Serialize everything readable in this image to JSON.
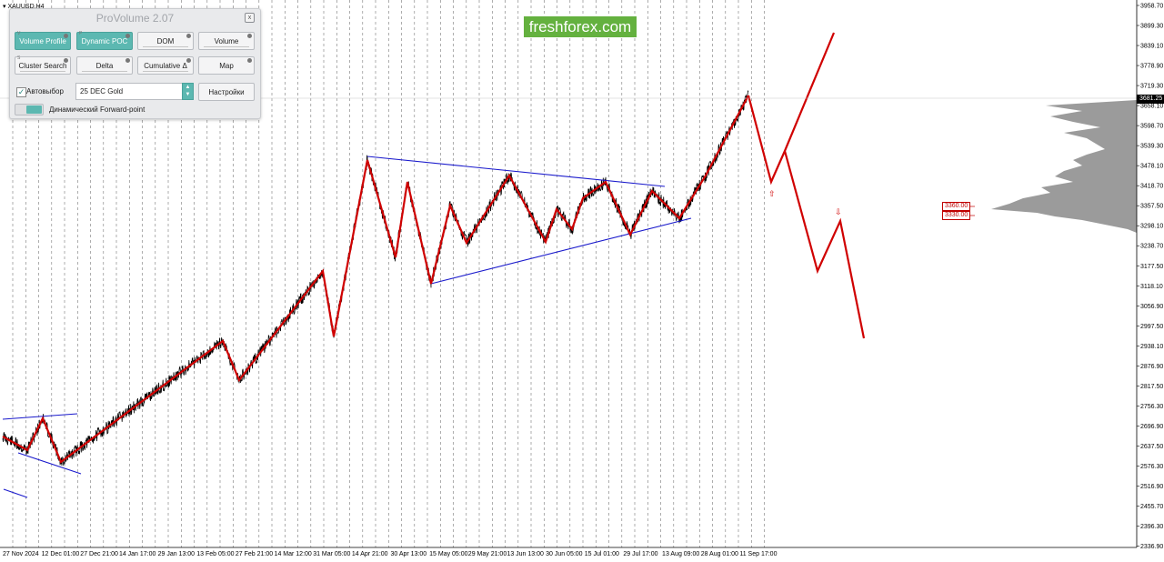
{
  "symbol": {
    "title": "XAUUSD,H4"
  },
  "brand": {
    "text": "freshforex.com",
    "color": "#64b13f"
  },
  "panel": {
    "title": "ProVolume 2.07",
    "close_label": "x",
    "buttons": [
      {
        "label": "Volume Profile",
        "hotkey": "V",
        "active": true
      },
      {
        "label": "Dynamic POC",
        "hotkey": "P",
        "active": true
      },
      {
        "label": "DOM",
        "hotkey": "",
        "active": false
      },
      {
        "label": "Volume",
        "hotkey": "",
        "active": false
      },
      {
        "label": "Cluster Search",
        "hotkey": "S",
        "active": false
      },
      {
        "label": "Delta",
        "hotkey": "",
        "active": false
      },
      {
        "label": "Cumulative Δ",
        "hotkey": "",
        "active": false
      },
      {
        "label": "Map",
        "hotkey": "",
        "active": false
      }
    ],
    "autoselect": {
      "label": "Автовыбор",
      "checked": true,
      "check_mark": "✓"
    },
    "symbol_select": {
      "value": "25 DEC Gold"
    },
    "settings_label": "Настройки",
    "forward_point_label": "Динамический Forward-point",
    "accent_color": "#5cb8b1"
  },
  "price_axis": {
    "labels": [
      "3958.70",
      "3899.30",
      "3839.10",
      "3778.90",
      "3719.30",
      "3658.10",
      "3598.70",
      "3539.30",
      "3478.10",
      "3418.70",
      "3357.50",
      "3298.10",
      "3238.70",
      "3177.50",
      "3118.10",
      "3056.90",
      "2997.50",
      "2938.10",
      "2876.90",
      "2817.50",
      "2756.30",
      "2696.90",
      "2637.50",
      "2576.30",
      "2516.90",
      "2455.70",
      "2396.30",
      "2336.90"
    ],
    "current_price": "3681.25"
  },
  "time_axis": {
    "labels": [
      "27 Nov 2024",
      "12 Dec 01:00",
      "27 Dec 21:00",
      "14 Jan 17:00",
      "29 Jan 13:00",
      "13 Feb 05:00",
      "27 Feb 21:00",
      "14 Mar 12:00",
      "31 Mar 05:00",
      "14 Apr 21:00",
      "30 Apr 13:00",
      "15 May 05:00",
      "29 May 21:00",
      "13 Jun 13:00",
      "30 Jun 05:00",
      "15 Jul 01:00",
      "29 Jul 17:00",
      "13 Aug 09:00",
      "28 Aug 01:00",
      "11 Sep 17:00"
    ]
  },
  "levels": {
    "upper": "3360.00",
    "lower": "3330.00"
  },
  "colors": {
    "zigzag": "#d00000",
    "trendline": "#1a1acc",
    "price": "#000000",
    "profile": "#8a8a8a"
  }
}
